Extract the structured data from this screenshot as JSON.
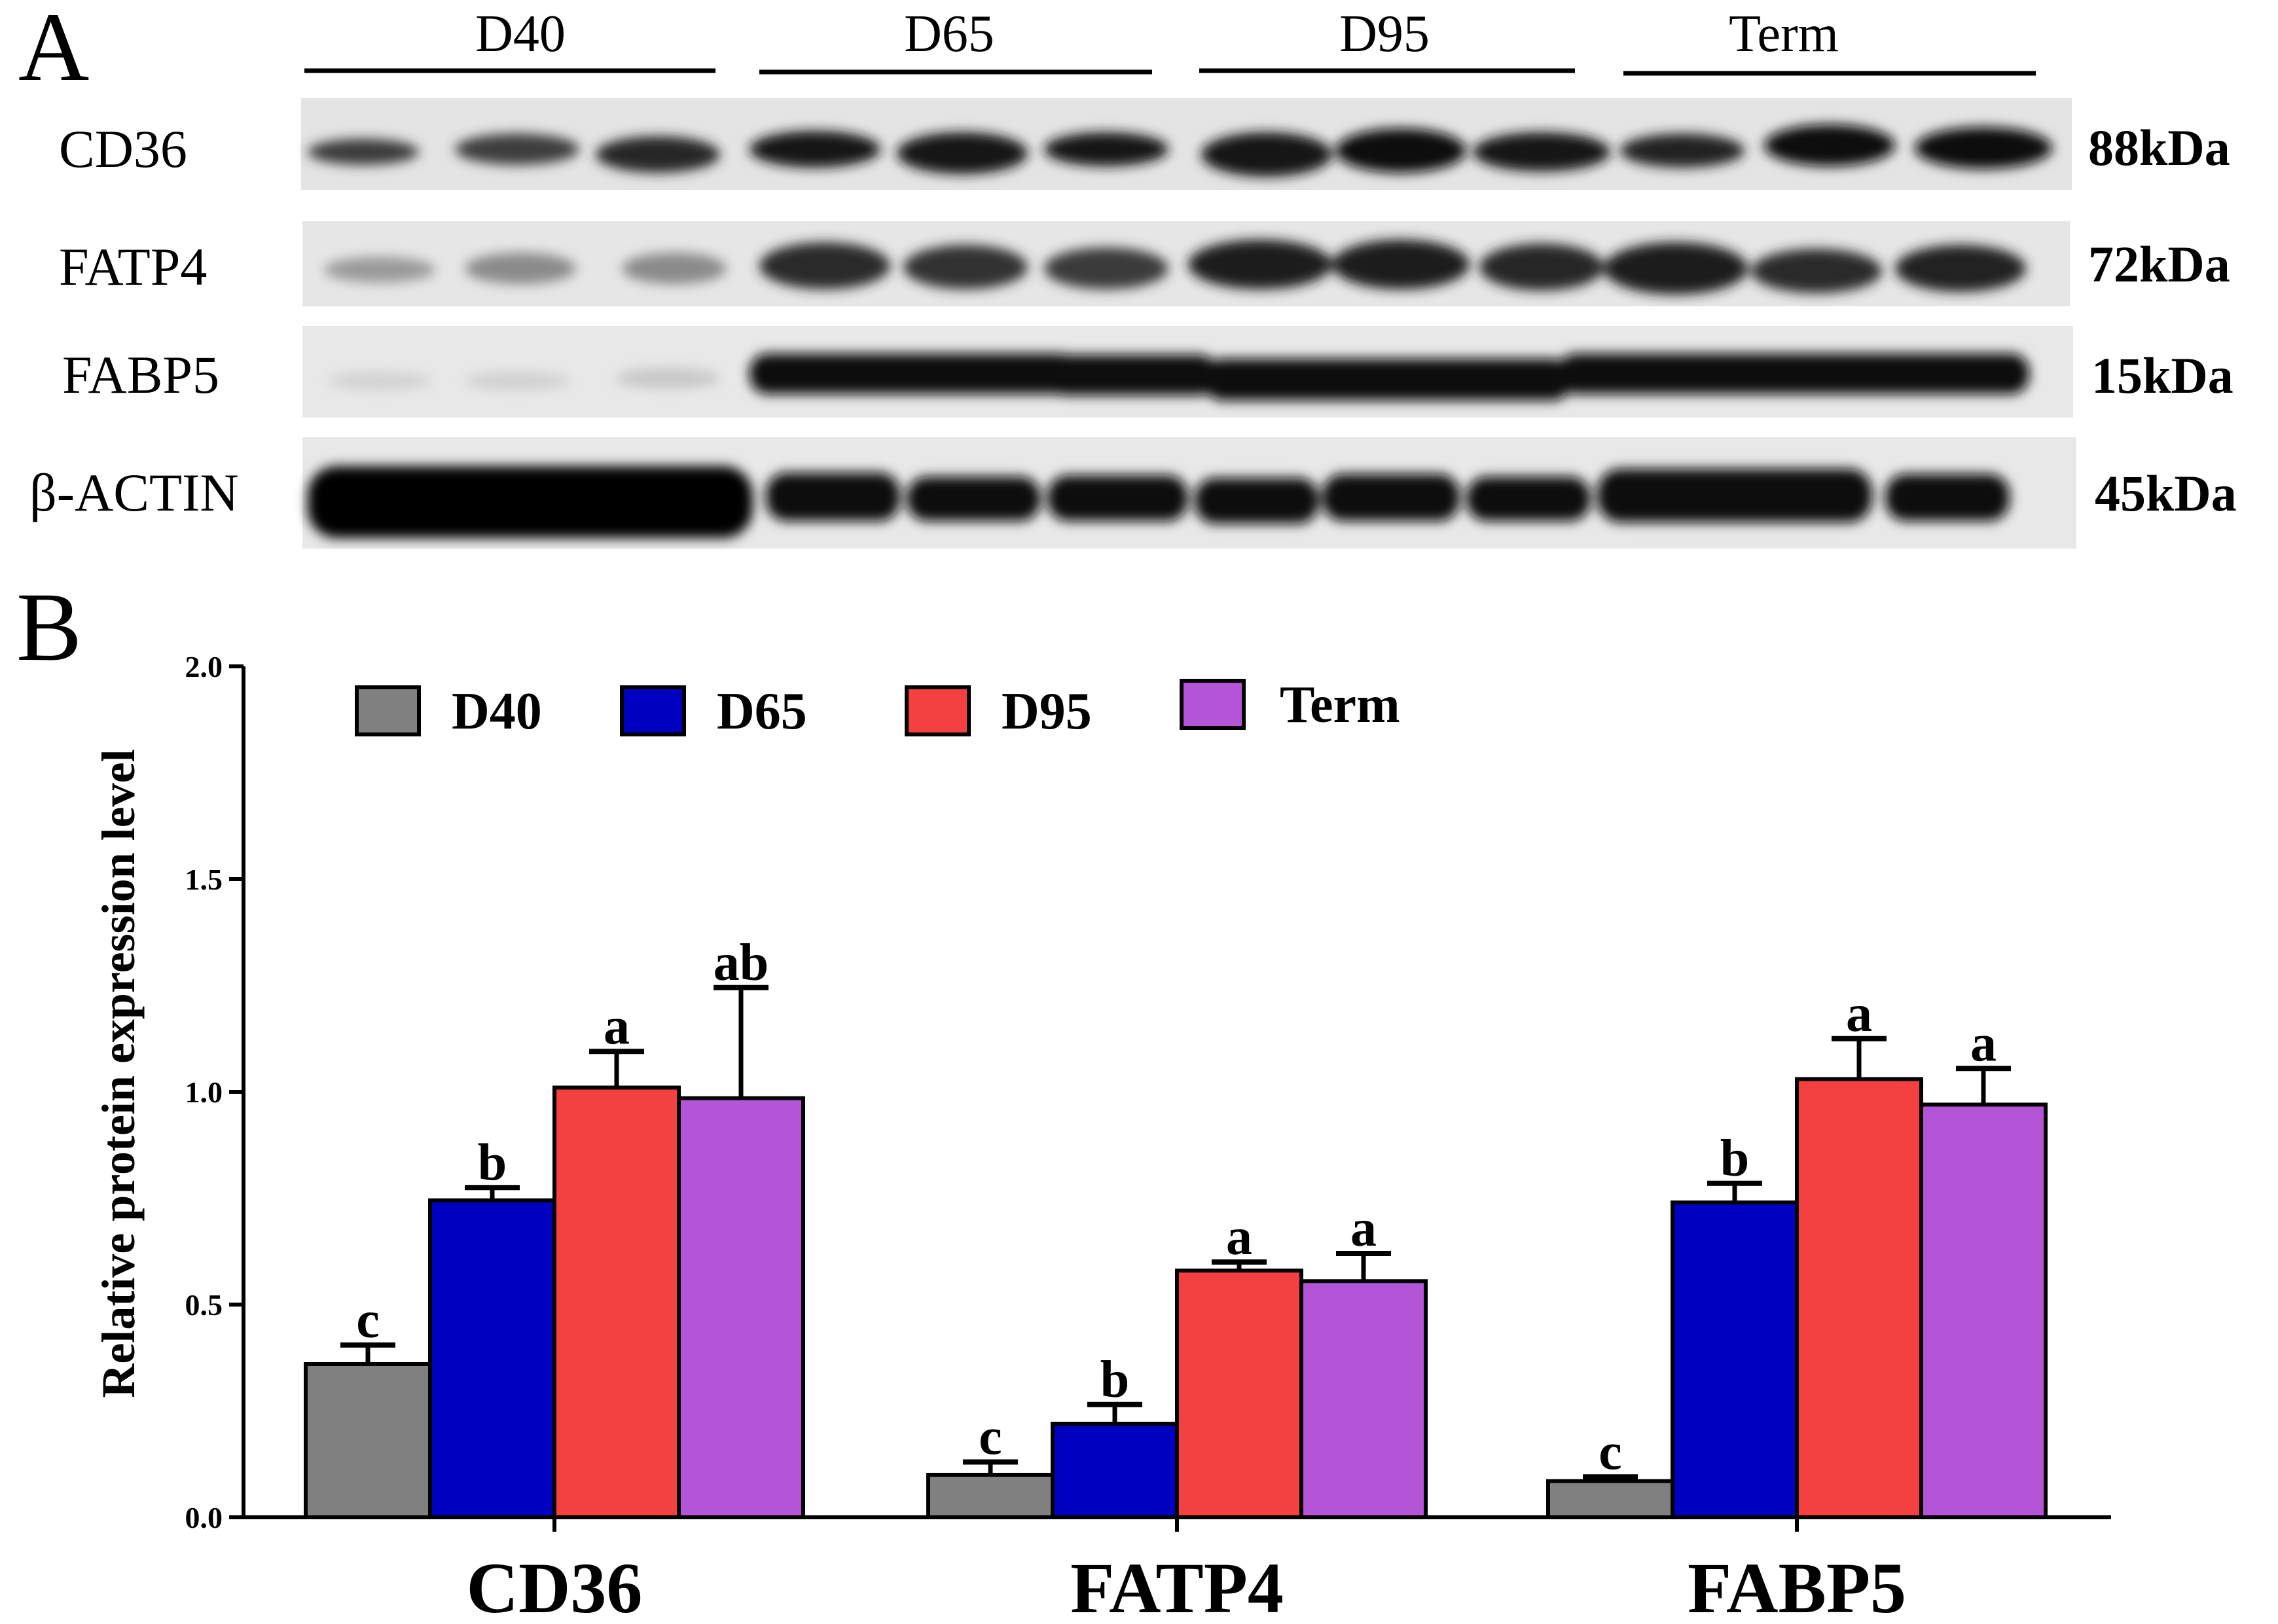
{
  "panel_a": {
    "letter": "A",
    "groups": [
      "D40",
      "D65",
      "D95",
      "Term"
    ],
    "blots": [
      {
        "protein": "CD36",
        "kda": "88kDa"
      },
      {
        "protein": "FATP4",
        "kda": "72kDa"
      },
      {
        "protein": "FABP5",
        "kda": "15kDa"
      },
      {
        "protein": "β-ACTIN",
        "kda": "45kDa"
      }
    ]
  },
  "panel_b": {
    "letter": "B"
  },
  "chart_data": {
    "type": "bar",
    "title": "",
    "xlabel": "",
    "ylabel": "Relative protein expression level",
    "ylim": [
      0,
      2.0
    ],
    "yticks": [
      "0.0",
      "0.5",
      "1.0",
      "1.5",
      "2.0"
    ],
    "categories": [
      "CD36",
      "FATP4",
      "FABP5"
    ],
    "legend_position": "top-left",
    "series": [
      {
        "name": "D40",
        "color": "#808080",
        "values": [
          0.36,
          0.1,
          0.085
        ],
        "errors": [
          0.045,
          0.03,
          0.01
        ],
        "labels": [
          "c",
          "c",
          "c"
        ]
      },
      {
        "name": "D65",
        "color": "#0000C0",
        "values": [
          0.745,
          0.22,
          0.74
        ],
        "errors": [
          0.03,
          0.045,
          0.045
        ],
        "labels": [
          "b",
          "b",
          "b"
        ]
      },
      {
        "name": "D95",
        "color": "#F44040",
        "values": [
          1.01,
          0.58,
          1.03
        ],
        "errors": [
          0.085,
          0.02,
          0.095
        ],
        "labels": [
          "a",
          "a",
          "a"
        ]
      },
      {
        "name": "Term",
        "color": "#B455D8",
        "values": [
          0.985,
          0.555,
          0.97
        ],
        "errors": [
          0.26,
          0.065,
          0.085
        ],
        "labels": [
          "ab",
          "a",
          "a"
        ]
      }
    ]
  }
}
